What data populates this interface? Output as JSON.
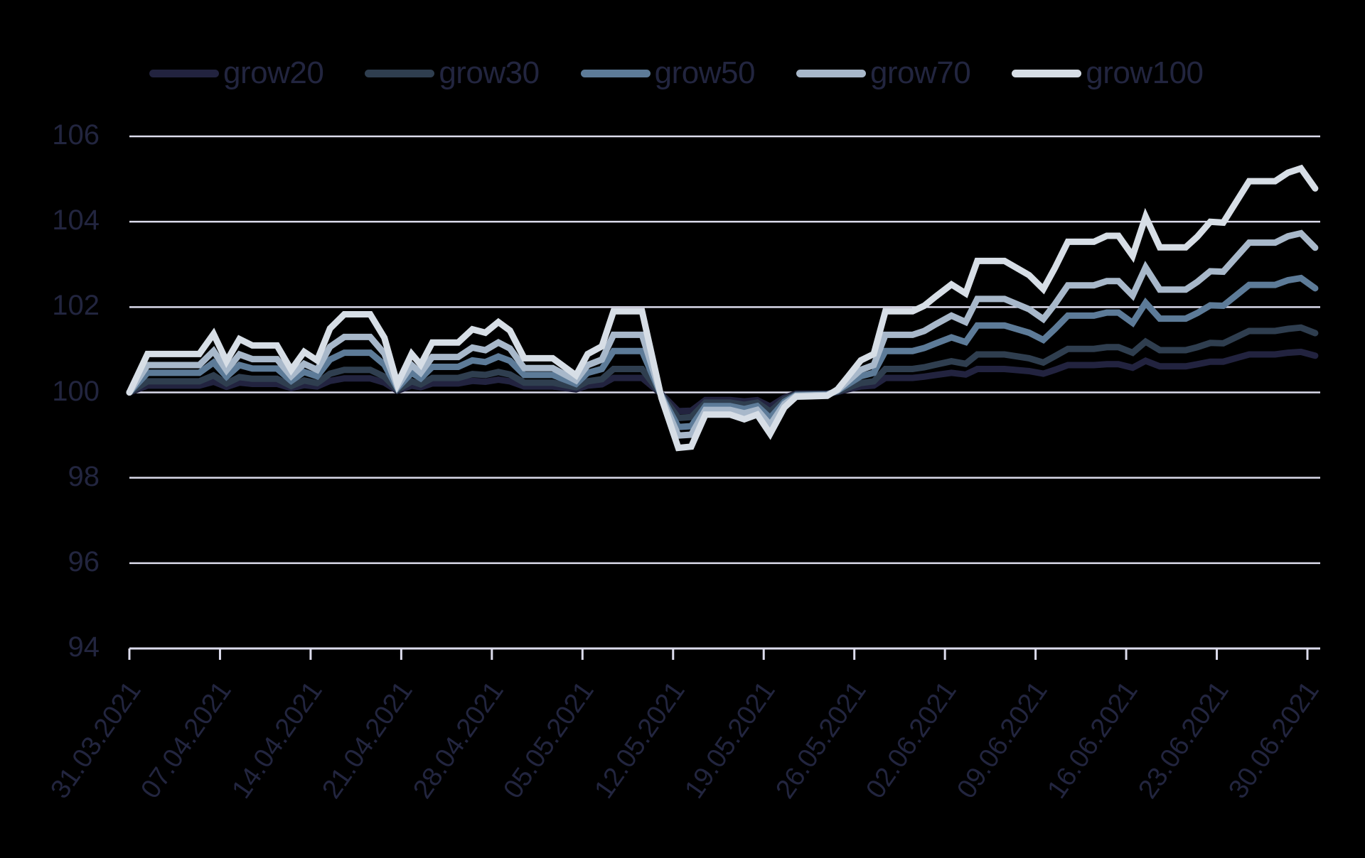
{
  "chart_data": {
    "type": "line",
    "title": "",
    "xlabel": "",
    "ylabel": "",
    "ylim": [
      94,
      106
    ],
    "yticks": [
      "94",
      "96",
      "98",
      "100",
      "102",
      "104",
      "106"
    ],
    "grid": true,
    "legend_position": "top",
    "x_tick_labels": [
      "31.03.2021",
      "07.04.2021",
      "14.04.2021",
      "21.04.2021",
      "28.04.2021",
      "05.05.2021",
      "12.05.2021",
      "19.05.2021",
      "26.05.2021",
      "02.06.2021",
      "09.06.2021",
      "16.06.2021",
      "23.06.2021",
      "30.06.2021"
    ],
    "x_day_range": [
      0,
      91
    ],
    "x_days": [
      0,
      1.4,
      5.4,
      6.5,
      7.5,
      8.5,
      9.5,
      11.4,
      12.5,
      13.5,
      14.5,
      15.5,
      16.6,
      18.6,
      19.7,
      20.7,
      21.8,
      22.5,
      23.4,
      25.4,
      26.5,
      27.5,
      28.5,
      29.4,
      30.5,
      32.7,
      34.5,
      35.4,
      36.5,
      37.4,
      39.6,
      41.1,
      42.4,
      43.4,
      44.5,
      46.4,
      47.5,
      48.5,
      49.5,
      50.6,
      51.5,
      53.9,
      54.7,
      55.5,
      56.5,
      57.5,
      58.4,
      60.5,
      61.4,
      62.3,
      63.5,
      64.6,
      65.5,
      67.6,
      69.5,
      70.6,
      71.5,
      72.5,
      74.5,
      75.5,
      76.4,
      77.5,
      78.5,
      79.6,
      81.6,
      82.5,
      83.5,
      84.5,
      86.5,
      88.5,
      89.5,
      90.5,
      91.6
    ],
    "series": [
      {
        "name": "grow20",
        "color": "#22233f",
        "values": [
          100,
          100.16,
          100.16,
          100.25,
          100.13,
          100.23,
          100.2,
          100.2,
          100.1,
          100.17,
          100.14,
          100.27,
          100.33,
          100.33,
          100.23,
          100.04,
          100.16,
          100.12,
          100.21,
          100.21,
          100.27,
          100.25,
          100.3,
          100.26,
          100.14,
          100.14,
          100.07,
          100.16,
          100.19,
          100.34,
          100.34,
          99.96,
          99.56,
          99.57,
          99.82,
          99.82,
          99.79,
          99.82,
          99.67,
          99.88,
          99.97,
          99.97,
          100.01,
          100.07,
          100.14,
          100.16,
          100.34,
          100.34,
          100.37,
          100.41,
          100.46,
          100.42,
          100.55,
          100.55,
          100.5,
          100.44,
          100.53,
          100.64,
          100.64,
          100.66,
          100.66,
          100.58,
          100.74,
          100.61,
          100.61,
          100.66,
          100.72,
          100.72,
          100.89,
          100.89,
          100.93,
          100.95,
          100.86
        ]
      },
      {
        "name": "grow30",
        "color": "#2f3e4f",
        "values": [
          100,
          100.26,
          100.26,
          100.4,
          100.21,
          100.36,
          100.32,
          100.32,
          100.15,
          100.28,
          100.22,
          100.44,
          100.53,
          100.53,
          100.37,
          100.06,
          100.26,
          100.19,
          100.34,
          100.34,
          100.43,
          100.41,
          100.48,
          100.42,
          100.23,
          100.23,
          100.12,
          100.26,
          100.31,
          100.55,
          100.55,
          99.94,
          99.4,
          99.42,
          99.76,
          99.76,
          99.71,
          99.76,
          99.55,
          99.84,
          99.95,
          99.96,
          100.02,
          100.11,
          100.22,
          100.26,
          100.55,
          100.55,
          100.59,
          100.65,
          100.73,
          100.67,
          100.89,
          100.89,
          100.8,
          100.7,
          100.85,
          101.02,
          101.02,
          101.06,
          101.06,
          100.93,
          101.19,
          100.99,
          100.99,
          101.06,
          101.16,
          101.15,
          101.44,
          101.44,
          101.49,
          101.52,
          101.39
        ]
      },
      {
        "name": "grow50",
        "color": "#5d7b98",
        "values": [
          100,
          100.46,
          100.46,
          100.7,
          100.37,
          100.64,
          100.56,
          100.56,
          100.27,
          100.48,
          100.38,
          100.77,
          100.93,
          100.93,
          100.65,
          100.1,
          100.46,
          100.33,
          100.6,
          100.6,
          100.75,
          100.71,
          100.84,
          100.74,
          100.41,
          100.41,
          100.2,
          100.46,
          100.55,
          100.97,
          100.97,
          99.92,
          99.19,
          99.21,
          99.68,
          99.68,
          99.61,
          99.68,
          99.4,
          99.78,
          99.94,
          99.95,
          100.04,
          100.19,
          100.38,
          100.46,
          100.97,
          100.97,
          101.04,
          101.15,
          101.29,
          101.18,
          101.57,
          101.57,
          101.4,
          101.23,
          101.49,
          101.8,
          101.8,
          101.87,
          101.87,
          101.63,
          102.1,
          101.73,
          101.73,
          101.86,
          102.04,
          102.03,
          102.52,
          102.52,
          102.63,
          102.68,
          102.44
        ]
      },
      {
        "name": "grow70",
        "color": "#a8b8ca",
        "values": [
          100,
          100.64,
          100.64,
          100.97,
          100.52,
          100.89,
          100.78,
          100.78,
          100.38,
          100.67,
          100.53,
          101.07,
          101.3,
          101.3,
          100.91,
          100.14,
          100.64,
          100.46,
          100.83,
          100.83,
          101.05,
          100.99,
          101.17,
          101.03,
          100.57,
          100.57,
          100.28,
          100.64,
          100.77,
          101.35,
          101.35,
          99.9,
          98.99,
          99.01,
          99.59,
          99.59,
          99.51,
          99.59,
          99.24,
          99.73,
          99.92,
          99.94,
          100.05,
          100.26,
          100.53,
          100.64,
          101.35,
          101.35,
          101.44,
          101.6,
          101.8,
          101.65,
          102.19,
          102.19,
          101.95,
          101.72,
          102.07,
          102.51,
          102.51,
          102.61,
          102.61,
          102.27,
          102.93,
          102.41,
          102.41,
          102.59,
          102.84,
          102.83,
          103.51,
          103.51,
          103.66,
          103.73,
          103.39
        ]
      },
      {
        "name": "grow100",
        "color": "#d7dee6",
        "values": [
          100,
          100.9,
          100.9,
          101.37,
          100.73,
          101.25,
          101.1,
          101.1,
          100.53,
          100.95,
          100.75,
          101.5,
          101.83,
          101.83,
          101.28,
          100.2,
          100.9,
          100.65,
          101.17,
          101.17,
          101.48,
          101.4,
          101.65,
          101.45,
          100.8,
          100.8,
          100.4,
          100.9,
          101.08,
          101.9,
          101.9,
          99.87,
          98.7,
          98.73,
          99.48,
          99.48,
          99.37,
          99.48,
          99.03,
          99.65,
          99.9,
          99.92,
          100.07,
          100.37,
          100.75,
          100.9,
          101.9,
          101.9,
          102.03,
          102.25,
          102.53,
          102.32,
          103.08,
          103.08,
          102.75,
          102.42,
          102.92,
          103.53,
          103.53,
          103.67,
          103.67,
          103.2,
          104.12,
          103.4,
          103.4,
          103.65,
          104.0,
          103.98,
          104.95,
          104.95,
          105.15,
          105.25,
          104.78
        ]
      }
    ]
  },
  "style": {
    "background": "#000000",
    "text_color": "#22253f",
    "grid_color": "#dcdcec"
  }
}
